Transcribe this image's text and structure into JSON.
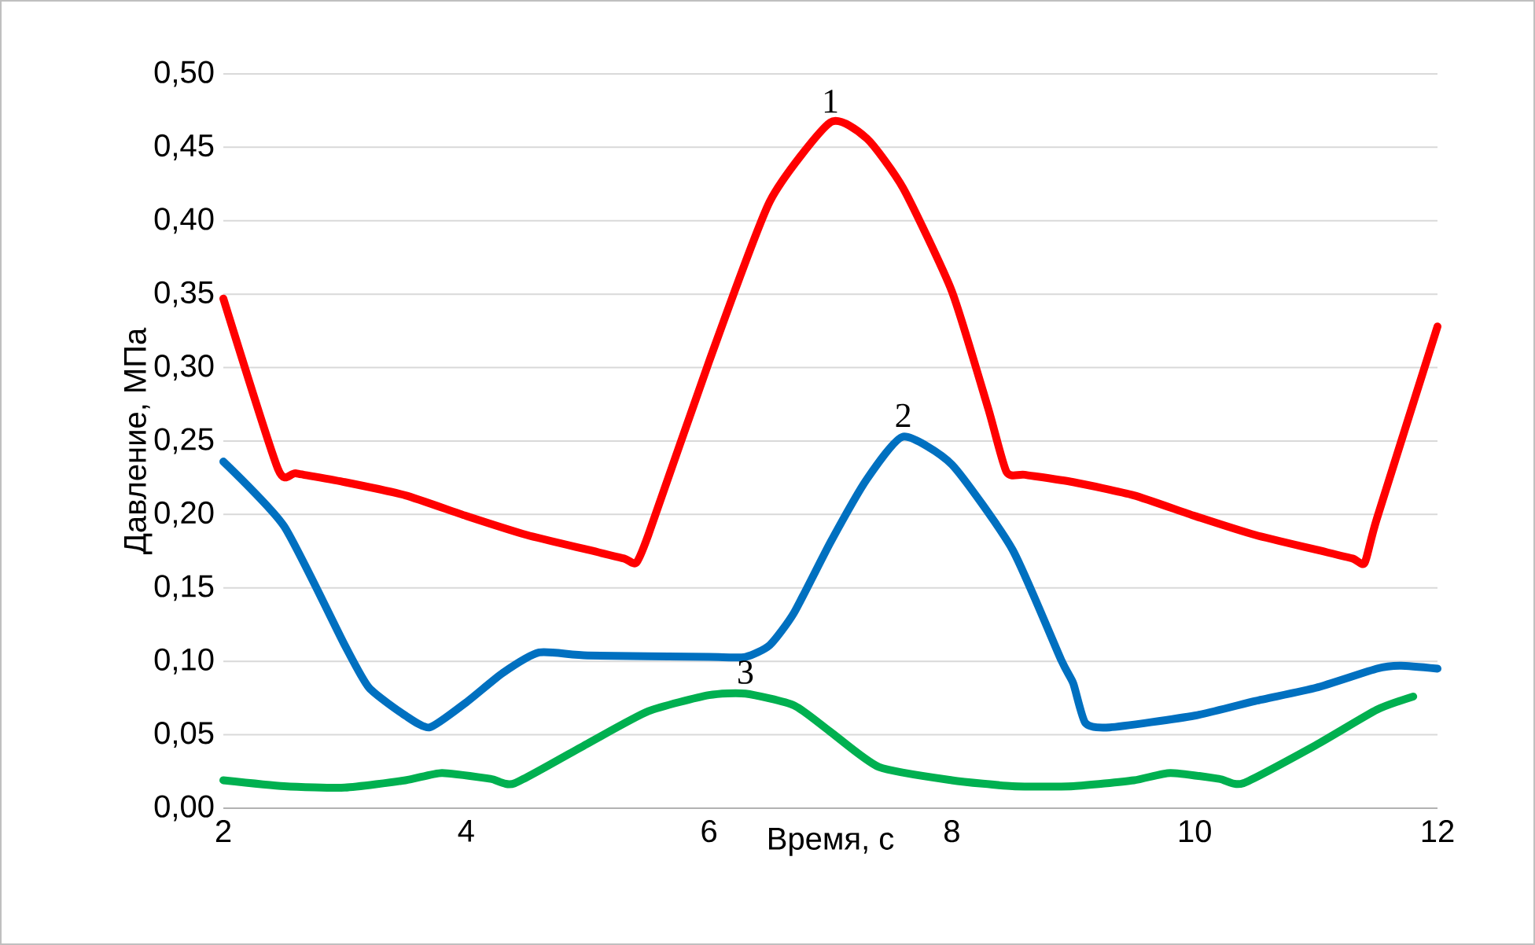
{
  "chart_data": {
    "type": "line",
    "xlabel": "Время, с",
    "ylabel": "Давление, МПа",
    "xlim": [
      2,
      12
    ],
    "ylim": [
      0,
      0.5
    ],
    "xticks": [
      2,
      4,
      6,
      8,
      10,
      12
    ],
    "yticks": [
      {
        "value": 0,
        "label": "0,00"
      },
      {
        "value": 0.05,
        "label": "0,05"
      },
      {
        "value": 0.1,
        "label": "0,10"
      },
      {
        "value": 0.15,
        "label": "0,15"
      },
      {
        "value": 0.2,
        "label": "0,20"
      },
      {
        "value": 0.25,
        "label": "0,25"
      },
      {
        "value": 0.3,
        "label": "0,30"
      },
      {
        "value": 0.35,
        "label": "0,35"
      },
      {
        "value": 0.4,
        "label": "0,40"
      },
      {
        "value": 0.45,
        "label": "0,45"
      },
      {
        "value": 0.5,
        "label": "0,50"
      }
    ],
    "grid": "y",
    "marker": "none",
    "line_style": "solid",
    "series": [
      {
        "name": "1",
        "color": "#ff0000",
        "x": [
          2,
          2.45,
          2.6,
          3,
          3.5,
          4,
          4.5,
          5,
          5.3,
          5.4,
          5.5,
          6,
          6.5,
          7,
          7.3,
          7.6,
          8,
          8.3,
          8.45,
          8.6,
          9,
          9.5,
          10,
          10.5,
          11,
          11.3,
          11.4,
          11.5,
          12
        ],
        "values": [
          0.347,
          0.231,
          0.228,
          0.222,
          0.213,
          0.199,
          0.186,
          0.176,
          0.17,
          0.167,
          0.186,
          0.304,
          0.413,
          0.467,
          0.456,
          0.422,
          0.352,
          0.272,
          0.229,
          0.227,
          0.222,
          0.213,
          0.199,
          0.186,
          0.176,
          0.17,
          0.167,
          0.197,
          0.328
        ]
      },
      {
        "name": "2",
        "color": "#0070c0",
        "x": [
          2,
          2.5,
          3,
          3.2,
          3.5,
          3.7,
          4,
          4.3,
          4.6,
          5,
          6,
          6.3,
          6.5,
          6.7,
          7,
          7.3,
          7.6,
          8,
          8.5,
          8.9,
          9,
          9.1,
          9.3,
          10,
          10.5,
          11,
          11.5,
          11.7,
          12
        ],
        "values": [
          0.236,
          0.192,
          0.111,
          0.082,
          0.063,
          0.055,
          0.072,
          0.092,
          0.106,
          0.104,
          0.103,
          0.103,
          0.111,
          0.133,
          0.181,
          0.224,
          0.253,
          0.234,
          0.176,
          0.101,
          0.085,
          0.058,
          0.055,
          0.063,
          0.073,
          0.082,
          0.095,
          0.097,
          0.095
        ]
      },
      {
        "name": "3",
        "color": "#00b050",
        "x": [
          2,
          2.5,
          3,
          3.5,
          3.8,
          4.2,
          4.4,
          5,
          5.5,
          6,
          6.3,
          6.7,
          7,
          7.4,
          8,
          8.5,
          9,
          9.5,
          9.8,
          10.2,
          10.4,
          11,
          11.5,
          11.8
        ],
        "values": [
          0.019,
          0.015,
          0.014,
          0.019,
          0.024,
          0.02,
          0.017,
          0.044,
          0.066,
          0.077,
          0.078,
          0.07,
          0.052,
          0.028,
          0.019,
          0.015,
          0.015,
          0.019,
          0.024,
          0.02,
          0.017,
          0.043,
          0.067,
          0.076
        ]
      }
    ]
  }
}
